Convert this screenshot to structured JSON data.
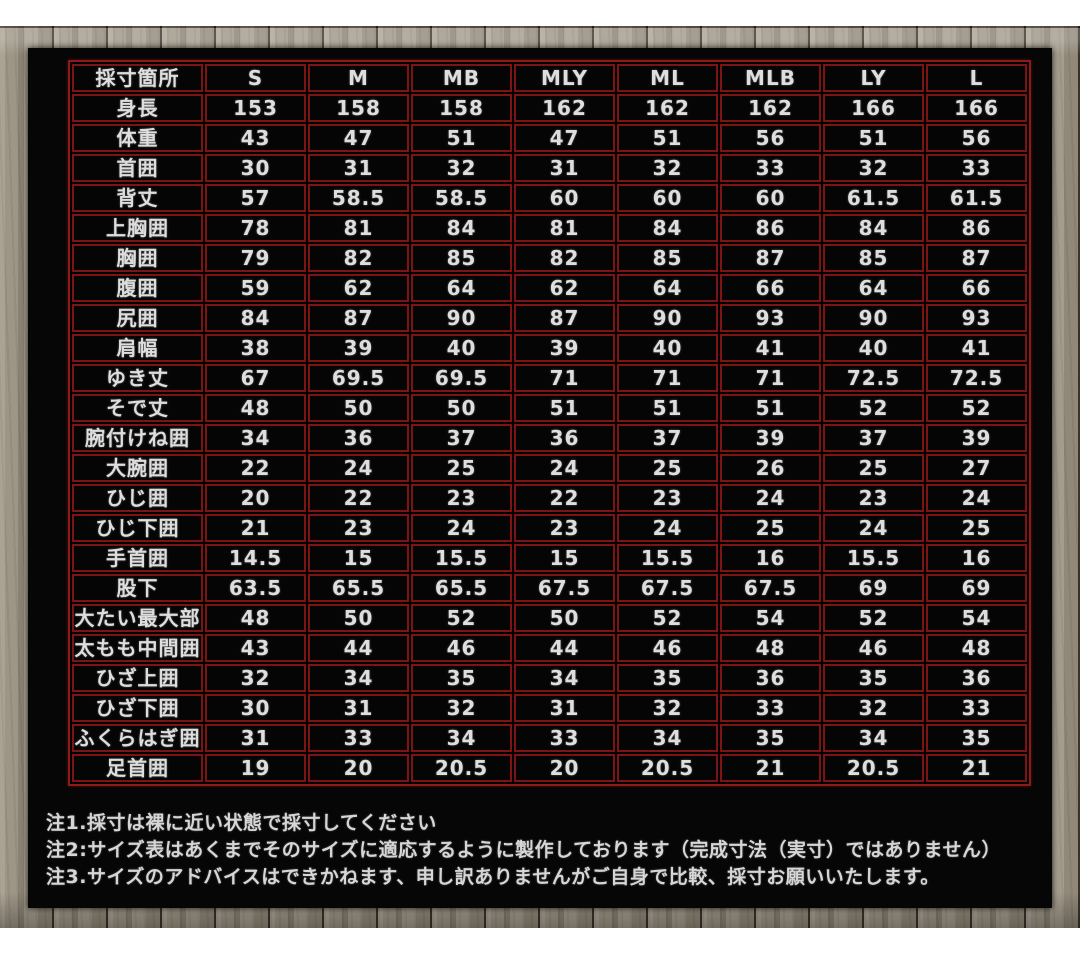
{
  "colors": {
    "panel_background": "#060606",
    "table_border_red": "#8e1a1a",
    "cell_border_red": "#7c1414",
    "text": "#dedede",
    "wood": "#9a9181",
    "page_margin": "#ffffff"
  },
  "table": {
    "header": [
      "採寸箇所",
      "S",
      "M",
      "MB",
      "MLY",
      "ML",
      "MLB",
      "LY",
      "L"
    ],
    "rows": [
      {
        "label": "身長",
        "values": [
          "153",
          "158",
          "158",
          "162",
          "162",
          "162",
          "166",
          "166"
        ]
      },
      {
        "label": "体重",
        "values": [
          "43",
          "47",
          "51",
          "47",
          "51",
          "56",
          "51",
          "56"
        ]
      },
      {
        "label": "首囲",
        "values": [
          "30",
          "31",
          "32",
          "31",
          "32",
          "33",
          "32",
          "33"
        ]
      },
      {
        "label": "背丈",
        "values": [
          "57",
          "58.5",
          "58.5",
          "60",
          "60",
          "60",
          "61.5",
          "61.5"
        ]
      },
      {
        "label": "上胸囲",
        "values": [
          "78",
          "81",
          "84",
          "81",
          "84",
          "86",
          "84",
          "86"
        ]
      },
      {
        "label": "胸囲",
        "values": [
          "79",
          "82",
          "85",
          "82",
          "85",
          "87",
          "85",
          "87"
        ]
      },
      {
        "label": "腹囲",
        "values": [
          "59",
          "62",
          "64",
          "62",
          "64",
          "66",
          "64",
          "66"
        ]
      },
      {
        "label": "尻囲",
        "values": [
          "84",
          "87",
          "90",
          "87",
          "90",
          "93",
          "90",
          "93"
        ]
      },
      {
        "label": "肩幅",
        "values": [
          "38",
          "39",
          "40",
          "39",
          "40",
          "41",
          "40",
          "41"
        ]
      },
      {
        "label": "ゆき丈",
        "values": [
          "67",
          "69.5",
          "69.5",
          "71",
          "71",
          "71",
          "72.5",
          "72.5"
        ]
      },
      {
        "label": "そで丈",
        "values": [
          "48",
          "50",
          "50",
          "51",
          "51",
          "51",
          "52",
          "52"
        ]
      },
      {
        "label": "腕付けね囲",
        "values": [
          "34",
          "36",
          "37",
          "36",
          "37",
          "39",
          "37",
          "39"
        ]
      },
      {
        "label": "大腕囲",
        "values": [
          "22",
          "24",
          "25",
          "24",
          "25",
          "26",
          "25",
          "27"
        ]
      },
      {
        "label": "ひじ囲",
        "values": [
          "20",
          "22",
          "23",
          "22",
          "23",
          "24",
          "23",
          "24"
        ]
      },
      {
        "label": "ひじ下囲",
        "values": [
          "21",
          "23",
          "24",
          "23",
          "24",
          "25",
          "24",
          "25"
        ]
      },
      {
        "label": "手首囲",
        "values": [
          "14.5",
          "15",
          "15.5",
          "15",
          "15.5",
          "16",
          "15.5",
          "16"
        ]
      },
      {
        "label": "股下",
        "values": [
          "63.5",
          "65.5",
          "65.5",
          "67.5",
          "67.5",
          "67.5",
          "69",
          "69"
        ]
      },
      {
        "label": "大たい最大部",
        "values": [
          "48",
          "50",
          "52",
          "50",
          "52",
          "54",
          "52",
          "54"
        ]
      },
      {
        "label": "太もも中間囲",
        "values": [
          "43",
          "44",
          "46",
          "44",
          "46",
          "48",
          "46",
          "48"
        ]
      },
      {
        "label": "ひざ上囲",
        "values": [
          "32",
          "34",
          "35",
          "34",
          "35",
          "36",
          "35",
          "36"
        ]
      },
      {
        "label": "ひざ下囲",
        "values": [
          "30",
          "31",
          "32",
          "31",
          "32",
          "33",
          "32",
          "33"
        ]
      },
      {
        "label": "ふくらはぎ囲",
        "values": [
          "31",
          "33",
          "34",
          "33",
          "34",
          "35",
          "34",
          "35"
        ]
      },
      {
        "label": "足首囲",
        "values": [
          "19",
          "20",
          "20.5",
          "20",
          "20.5",
          "21",
          "20.5",
          "21"
        ]
      }
    ]
  },
  "notes": [
    "注1.採寸は裸に近い状態で採寸してください",
    "注2:サイズ表はあくまでそのサイズに適応するように製作しております（完成寸法（実寸）ではありません）",
    "注3.サイズのアドバイスはできかねます、申し訳ありませんがご自身で比較、採寸お願いいたします。"
  ]
}
